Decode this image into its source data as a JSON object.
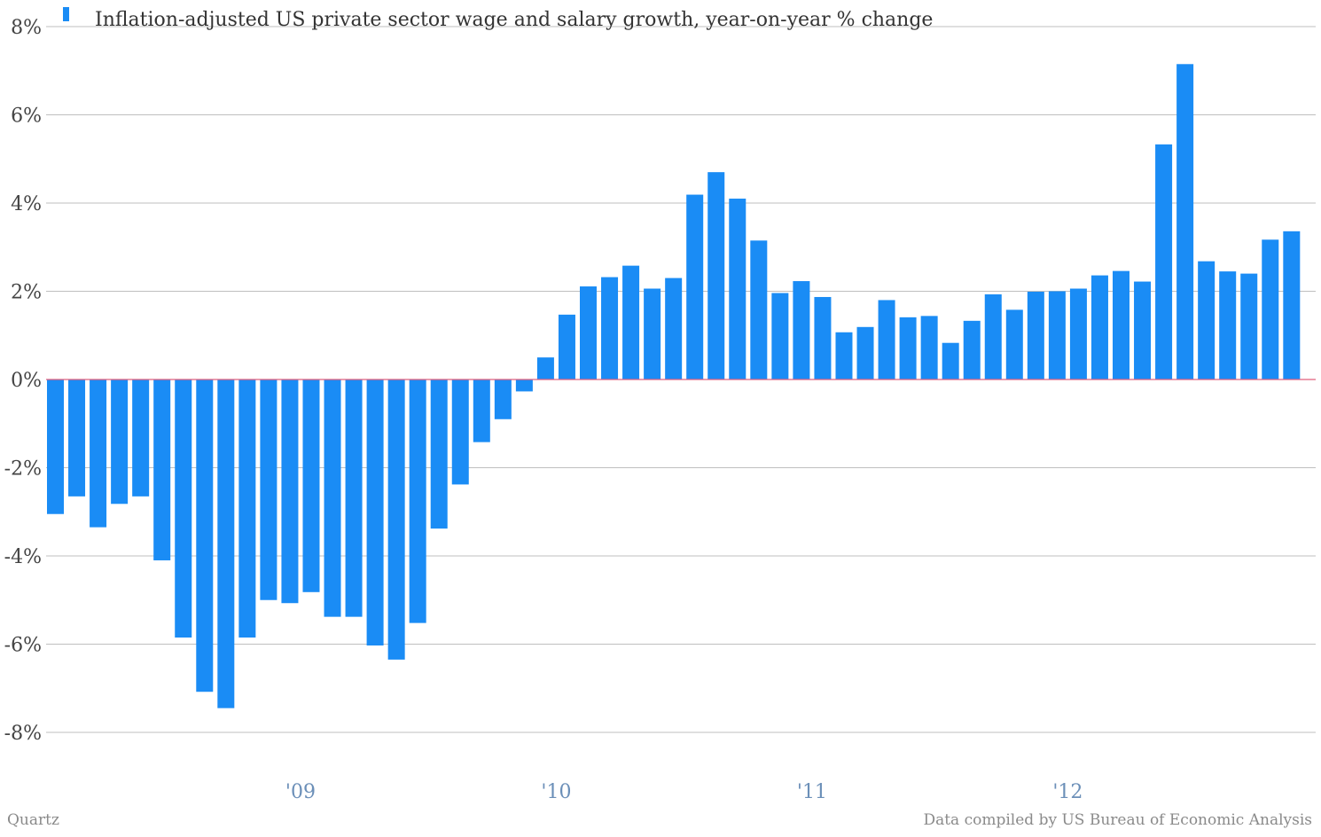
{
  "chart_data": {
    "type": "bar",
    "series": [
      {
        "name": "Inflation-adjusted US private sector wage and salary growth, year-on-year % change",
        "color": "#1a8cf5",
        "values": [
          -3.05,
          -2.65,
          -3.35,
          -2.82,
          -2.65,
          -4.1,
          -5.85,
          -7.08,
          -7.45,
          -5.85,
          -5.0,
          -5.07,
          -4.82,
          -5.38,
          -5.38,
          -6.03,
          -6.35,
          -5.52,
          -3.38,
          -2.38,
          -1.42,
          -0.9,
          -0.27,
          0.5,
          1.47,
          2.11,
          2.32,
          2.58,
          2.06,
          2.3,
          4.19,
          4.7,
          4.1,
          3.15,
          1.96,
          2.23,
          1.87,
          1.07,
          1.19,
          1.8,
          1.41,
          1.44,
          0.83,
          1.33,
          1.93,
          1.58,
          1.99,
          2.0,
          2.06,
          2.36,
          2.46,
          2.22,
          5.33,
          7.15,
          2.68,
          2.45,
          2.4,
          3.17,
          3.36
        ]
      }
    ],
    "ylim": [
      -9,
      8
    ],
    "yticks": [
      8,
      6,
      4,
      2,
      0,
      -2,
      -4,
      -6,
      -8
    ],
    "ytick_labels": [
      "8%",
      "6%",
      "4%",
      "2%",
      "0%",
      "-2%",
      "-4%",
      "-6%",
      "-8%"
    ],
    "xtick_labels": [
      {
        "label": "'09",
        "index": 11.5
      },
      {
        "label": "'10",
        "index": 23.5
      },
      {
        "label": "'11",
        "index": 35.5
      },
      {
        "label": "'12",
        "index": 47.5
      }
    ],
    "grid": true,
    "zero_line_color": "#e0607e",
    "grid_color": "#bfbfbf",
    "legend_position": "top-left"
  },
  "footer": {
    "source_left": "Quartz",
    "source_right": "Data compiled by US Bureau of Economic Analysis"
  }
}
